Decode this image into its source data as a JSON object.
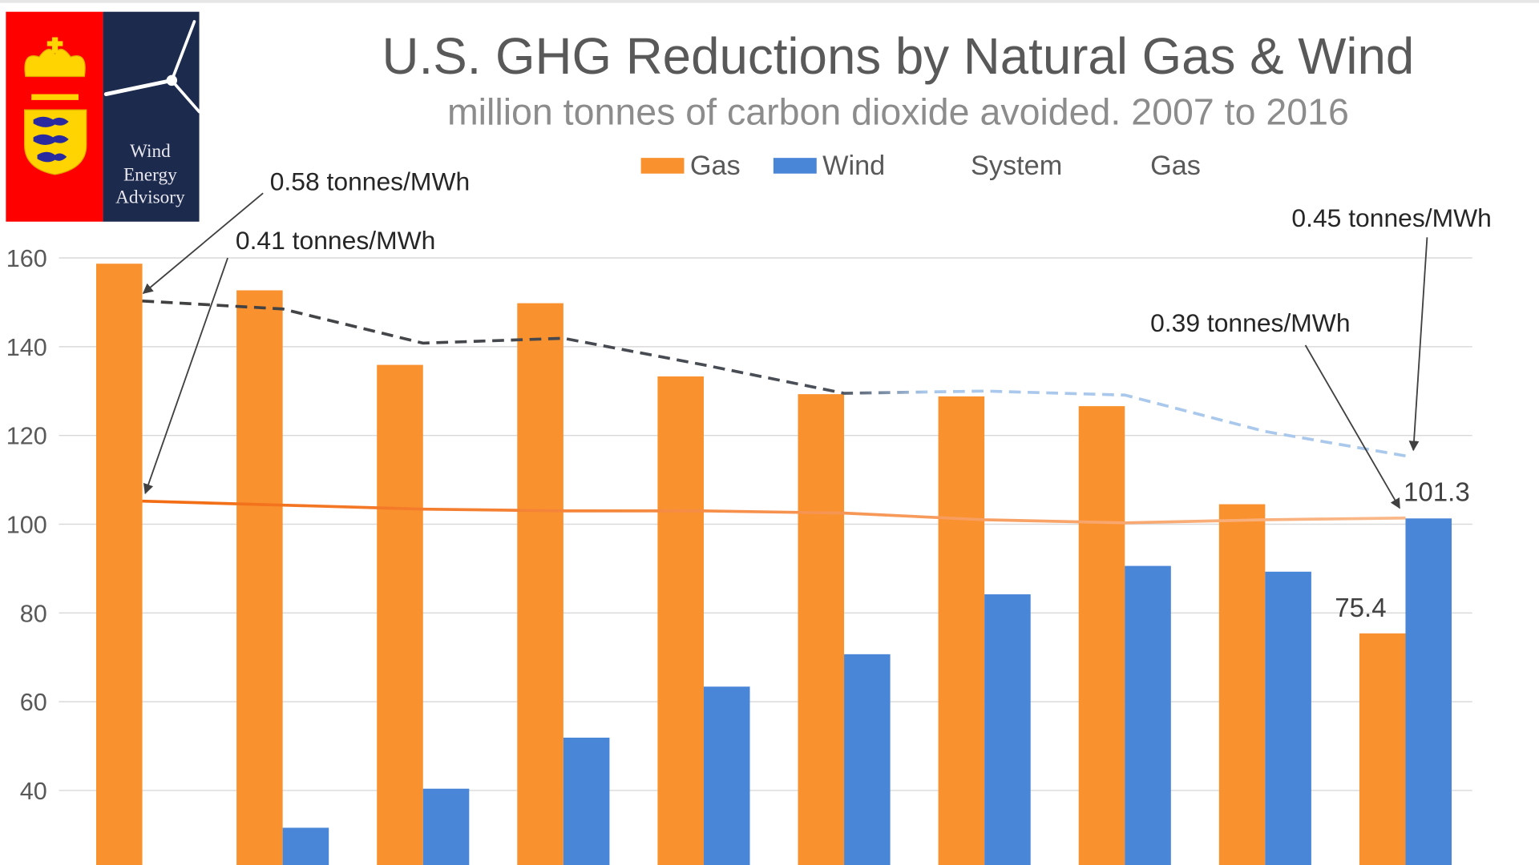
{
  "chart_data": {
    "type": "bar",
    "title": "U.S. GHG Reductions by Natural Gas & Wind",
    "subtitle": "million tonnes of carbon dioxide avoided. 2007 to 2016",
    "ylim": [
      23,
      165
    ],
    "yticks": [
      "40",
      "60",
      "80",
      "100",
      "120",
      "140",
      "160"
    ],
    "grid": true,
    "legend_placement": "top",
    "legend": [
      {
        "label": "Gas",
        "kind": "bar",
        "color": "#F9912E"
      },
      {
        "label": "Wind",
        "kind": "bar",
        "color": "#4A86D8"
      },
      {
        "label": "System",
        "kind": "dashed-line",
        "color": "#404040"
      },
      {
        "label": "Gas",
        "kind": "line",
        "color": "#F26B12"
      }
    ],
    "series": [
      {
        "name": "Gas",
        "type": "bar",
        "color": "#F9912E",
        "values": [
          158.7,
          152.7,
          135.9,
          149.8,
          133.3,
          129.3,
          128.8,
          126.6,
          104.5,
          75.4
        ]
      },
      {
        "name": "Wind",
        "type": "bar",
        "color": "#4A86D8",
        "values": [
          null,
          31.6,
          40.4,
          51.9,
          63.4,
          70.7,
          84.2,
          90.6,
          89.3,
          101.3
        ]
      },
      {
        "name": "System",
        "type": "line",
        "dashed": true,
        "color_start": "#404040",
        "color_end": "#A9C8EC",
        "values": [
          150.3,
          148.5,
          140.8,
          141.9,
          135.9,
          129.5,
          130.0,
          129.1,
          120.9,
          115.4
        ]
      },
      {
        "name": "Gas",
        "type": "line",
        "color_start": "#F26B12",
        "color_end": "#FAB98A",
        "values": [
          105.2,
          104.3,
          103.4,
          103.0,
          103.0,
          102.5,
          101.0,
          100.3,
          101.0,
          101.4
        ]
      }
    ],
    "data_labels": [
      {
        "text": "101.3",
        "series": "Wind",
        "index": 9
      },
      {
        "text": "75.4",
        "series": "Gas",
        "index": 9
      }
    ],
    "annotations": [
      {
        "text": "0.58 tonnes/MWh",
        "target_series": "System",
        "index": 0
      },
      {
        "text": "0.41 tonnes/MWh",
        "target_series": "Gas line",
        "index": 0
      },
      {
        "text": "0.45 tonnes/MWh",
        "target_series": "System",
        "index": 9
      },
      {
        "text": "0.39 tonnes/MWh",
        "target_series": "Gas line",
        "index": 9
      }
    ]
  },
  "logo": {
    "text_lines": [
      "Wind",
      "Energy",
      "Advisory"
    ]
  }
}
